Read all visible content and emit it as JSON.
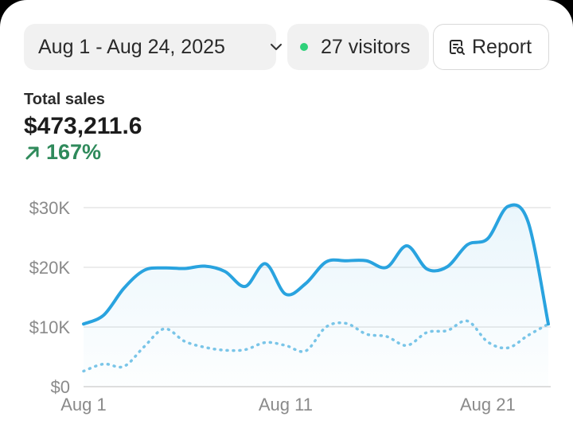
{
  "toolbar": {
    "date_range": "Aug 1 - Aug 24, 2025",
    "visitors": "27 visitors",
    "report_label": "Report",
    "visitors_dot_color": "#2fd17a"
  },
  "metric": {
    "label": "Total sales",
    "value": "$473,211.6",
    "change": "167%",
    "change_color": "#2f8a5b",
    "change_icon": "arrow-up-right-icon"
  },
  "chart_data": {
    "type": "line",
    "y_ticks": [
      "$0",
      "$10K",
      "$20K",
      "$30K"
    ],
    "x_ticks": [
      "Aug 1",
      "Aug 11",
      "Aug 21"
    ],
    "ylim": [
      0,
      30000
    ],
    "grid": true,
    "series": [
      {
        "style": "solid",
        "color": "#29a3df",
        "values": [
          10500,
          12000,
          16500,
          19500,
          19900,
          19800,
          20200,
          19300,
          16800,
          20600,
          15500,
          17300,
          20900,
          21100,
          21100,
          20000,
          23600,
          19700,
          20100,
          23800,
          24800,
          30200,
          27600,
          10500
        ]
      },
      {
        "style": "dotted",
        "color": "#7cc6e8",
        "values": [
          2600,
          3800,
          3400,
          6700,
          9700,
          7600,
          6600,
          6100,
          6200,
          7400,
          6900,
          6000,
          10000,
          10600,
          8800,
          8400,
          6900,
          9100,
          9400,
          11000,
          7500,
          6500,
          8600,
          10500
        ]
      }
    ]
  }
}
